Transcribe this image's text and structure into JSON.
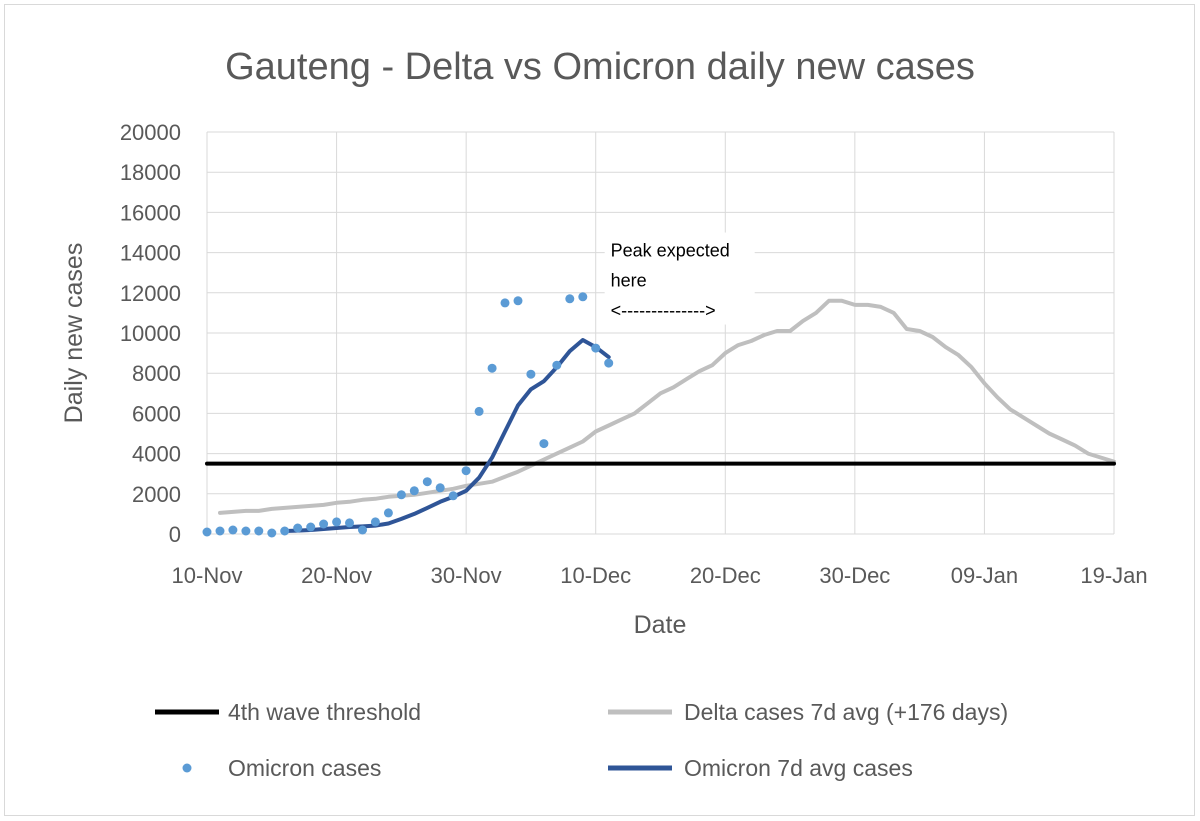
{
  "chart_data": {
    "type": "line",
    "title": "Gauteng -  Delta vs Omicron daily new cases",
    "xlabel": "Date",
    "ylabel": "Daily new cases",
    "ylim": [
      0,
      20000
    ],
    "yticks": [
      "0",
      "2000",
      "4000",
      "6000",
      "8000",
      "10000",
      "12000",
      "14000",
      "16000",
      "18000",
      "20000"
    ],
    "xticks": [
      "10-Nov",
      "20-Nov",
      "30-Nov",
      "10-Dec",
      "20-Dec",
      "30-Dec",
      "09-Jan",
      "19-Jan"
    ],
    "x_start": "10-Nov",
    "x_end": "19-Jan",
    "grid": true,
    "legend_position": "bottom",
    "series": [
      {
        "name": "4th wave threshold",
        "kind": "line",
        "color": "#000000",
        "x": [
          "10-Nov",
          "19-Jan"
        ],
        "y": [
          3500,
          3500
        ]
      },
      {
        "name": "Delta cases 7d avg (+176 days)",
        "kind": "line",
        "color": "#bfbfbf",
        "x": [
          "11-Nov",
          "12-Nov",
          "13-Nov",
          "14-Nov",
          "15-Nov",
          "16-Nov",
          "17-Nov",
          "18-Nov",
          "19-Nov",
          "20-Nov",
          "21-Nov",
          "22-Nov",
          "23-Nov",
          "24-Nov",
          "25-Nov",
          "26-Nov",
          "27-Nov",
          "28-Nov",
          "29-Nov",
          "30-Nov",
          "01-Dec",
          "02-Dec",
          "03-Dec",
          "04-Dec",
          "05-Dec",
          "06-Dec",
          "07-Dec",
          "08-Dec",
          "09-Dec",
          "10-Dec",
          "11-Dec",
          "12-Dec",
          "13-Dec",
          "14-Dec",
          "15-Dec",
          "16-Dec",
          "17-Dec",
          "18-Dec",
          "19-Dec",
          "20-Dec",
          "21-Dec",
          "22-Dec",
          "23-Dec",
          "24-Dec",
          "25-Dec",
          "26-Dec",
          "27-Dec",
          "28-Dec",
          "29-Dec",
          "30-Dec",
          "31-Dec",
          "01-Jan",
          "02-Jan",
          "03-Jan",
          "04-Jan",
          "05-Jan",
          "06-Jan",
          "07-Jan",
          "08-Jan",
          "09-Jan",
          "10-Jan",
          "11-Jan",
          "12-Jan",
          "13-Jan",
          "14-Jan",
          "15-Jan",
          "16-Jan",
          "17-Jan",
          "18-Jan",
          "19-Jan"
        ],
        "y": [
          1050,
          1100,
          1150,
          1150,
          1250,
          1300,
          1350,
          1400,
          1450,
          1550,
          1600,
          1700,
          1750,
          1850,
          1900,
          1950,
          2050,
          2150,
          2250,
          2400,
          2500,
          2600,
          2850,
          3100,
          3400,
          3700,
          4000,
          4300,
          4600,
          5100,
          5400,
          5700,
          6000,
          6500,
          7000,
          7300,
          7700,
          8100,
          8400,
          9000,
          9400,
          9600,
          9900,
          10100,
          10100,
          10600,
          11000,
          11600,
          11600,
          11400,
          11400,
          11300,
          11000,
          10200,
          10100,
          9800,
          9300,
          8900,
          8300,
          7500,
          6800,
          6200,
          5800,
          5400,
          5000,
          4700,
          4400,
          4000,
          3800,
          3600
        ]
      },
      {
        "name": "Omicron cases",
        "kind": "scatter",
        "color": "#5b9bd5",
        "x": [
          "10-Nov",
          "11-Nov",
          "12-Nov",
          "13-Nov",
          "14-Nov",
          "15-Nov",
          "16-Nov",
          "17-Nov",
          "18-Nov",
          "19-Nov",
          "20-Nov",
          "21-Nov",
          "22-Nov",
          "23-Nov",
          "24-Nov",
          "25-Nov",
          "26-Nov",
          "27-Nov",
          "28-Nov",
          "29-Nov",
          "30-Nov",
          "01-Dec",
          "02-Dec",
          "03-Dec",
          "04-Dec",
          "05-Dec",
          "06-Dec",
          "07-Dec",
          "08-Dec",
          "09-Dec",
          "10-Dec",
          "11-Dec"
        ],
        "y": [
          100,
          150,
          200,
          150,
          150,
          50,
          150,
          300,
          350,
          500,
          600,
          550,
          200,
          600,
          1050,
          1950,
          2150,
          2600,
          2300,
          1900,
          3150,
          6100,
          8250,
          11500,
          11600,
          7950,
          4500,
          8400,
          11700,
          11800,
          9250,
          8500
        ]
      },
      {
        "name": "Omicron 7d avg cases",
        "kind": "line",
        "color": "#2f5597",
        "x": [
          "16-Nov",
          "17-Nov",
          "18-Nov",
          "19-Nov",
          "20-Nov",
          "21-Nov",
          "22-Nov",
          "23-Nov",
          "24-Nov",
          "25-Nov",
          "26-Nov",
          "27-Nov",
          "28-Nov",
          "29-Nov",
          "30-Nov",
          "01-Dec",
          "02-Dec",
          "03-Dec",
          "04-Dec",
          "05-Dec",
          "06-Dec",
          "07-Dec",
          "08-Dec",
          "09-Dec",
          "10-Dec",
          "11-Dec"
        ],
        "y": [
          150,
          170,
          200,
          250,
          300,
          350,
          380,
          420,
          520,
          750,
          1000,
          1300,
          1600,
          1850,
          2150,
          2800,
          3800,
          5100,
          6400,
          7200,
          7600,
          8300,
          9100,
          9650,
          9300,
          8800
        ]
      }
    ],
    "annotations": [
      {
        "text_lines": [
          "Peak expected",
          "here",
          "<-------------->"
        ],
        "anchor_x": "11-Dec",
        "anchor_y": 14600
      }
    ]
  }
}
